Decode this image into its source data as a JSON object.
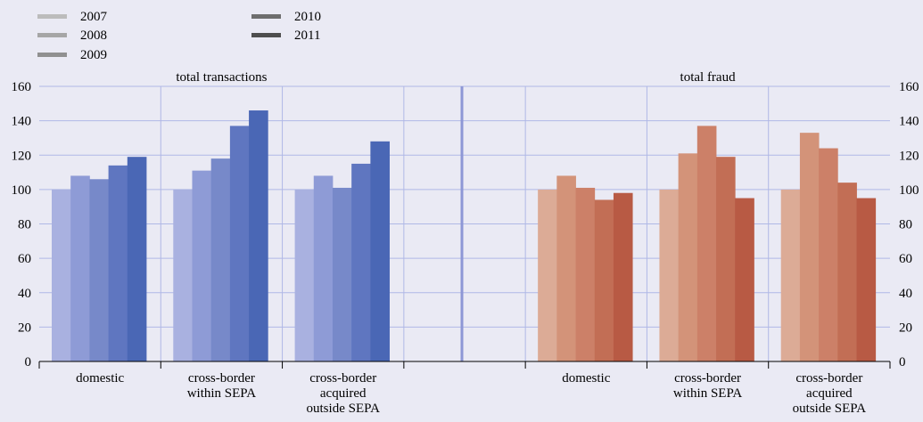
{
  "chart_data": {
    "type": "bar",
    "legend": {
      "placement": "top-left",
      "entries": [
        {
          "name": "2007",
          "color": "#bcbcbc"
        },
        {
          "name": "2008",
          "color": "#a6a6a6"
        },
        {
          "name": "2009",
          "color": "#909090"
        },
        {
          "name": "2010",
          "color": "#6e6e6e"
        },
        {
          "name": "2011",
          "color": "#4e4e4e"
        }
      ]
    },
    "ylim": [
      0,
      160
    ],
    "yticks": [
      0,
      20,
      40,
      60,
      80,
      100,
      120,
      140,
      160
    ],
    "grid": true,
    "categories": [
      "domestic",
      "cross-border within SEPA",
      "cross-border acquired outside SEPA",
      "",
      "domestic",
      "cross-border within SEPA",
      "cross-border acquired outside SEPA"
    ],
    "category_lines": [
      [
        "domestic"
      ],
      [
        "cross-border",
        "within SEPA"
      ],
      [
        "cross-border",
        "acquired",
        "outside SEPA"
      ],
      [],
      [
        "domestic"
      ],
      [
        "cross-border",
        "within SEPA"
      ],
      [
        "cross-border",
        "acquired",
        "outside SEPA"
      ]
    ],
    "panels": [
      {
        "title": "total transactions",
        "series_colors": [
          "#a9b1e0",
          "#8e9bd6",
          "#7789c9",
          "#5f76c0",
          "#4a67b5"
        ],
        "groups": [
          {
            "category": "domestic",
            "values": [
              100,
              108,
              106,
              114,
              119
            ]
          },
          {
            "category": "cross-border within SEPA",
            "values": [
              100,
              111,
              118,
              137,
              146
            ]
          },
          {
            "category": "cross-border acquired outside SEPA",
            "values": [
              100,
              108,
              101,
              115,
              128
            ]
          }
        ]
      },
      {
        "title": "total fraud",
        "series_colors": [
          "#dcab96",
          "#d39379",
          "#cc8068",
          "#c26e55",
          "#b85a44"
        ],
        "groups": [
          {
            "category": "domestic",
            "values": [
              100,
              108,
              101,
              94,
              98
            ]
          },
          {
            "category": "cross-border within SEPA",
            "values": [
              100,
              121,
              137,
              119,
              95
            ]
          },
          {
            "category": "cross-border acquired outside SEPA",
            "values": [
              100,
              133,
              124,
              104,
              95
            ]
          }
        ]
      }
    ]
  }
}
